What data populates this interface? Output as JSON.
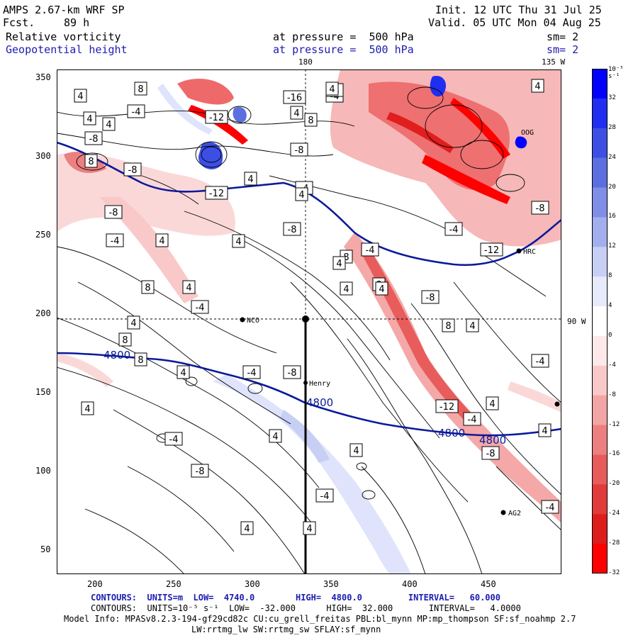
{
  "header": {
    "model": "AMPS 2.67-km WRF SP",
    "forecast_label": "Fcst.",
    "forecast_hours": "89 h",
    "init": "Init. 12 UTC Thu 31 Jul 25",
    "valid": "Valid. 05 UTC Mon 04 Aug 25",
    "field1_name": "Relative vorticity",
    "field1_level": "at pressure =  500 hPa",
    "field1_smooth": "sm= 2",
    "field2_name": "Geopotential height",
    "field2_level": "at pressure =  500 hPa",
    "field2_smooth": "sm= 2"
  },
  "map": {
    "lon_180": "180",
    "lon_135W": "135 W",
    "lon_90W": "90 W",
    "x_ticks": [
      "200",
      "250",
      "300",
      "350",
      "400",
      "450"
    ],
    "y_ticks": [
      "350",
      "300",
      "250",
      "200",
      "150",
      "100",
      "50"
    ],
    "stations": [
      {
        "name": "NCO"
      },
      {
        "name": "Henry"
      },
      {
        "name": "AG2"
      },
      {
        "name": "HRC"
      },
      {
        "name": "OOG"
      }
    ],
    "height_labels": [
      "4800",
      "4800",
      "4800",
      "4800"
    ],
    "vort_labels": [
      "4",
      "8",
      "-4",
      "-8",
      "-12",
      "-16",
      "-4",
      "4",
      "8",
      "-8",
      "4",
      "-4",
      "-8",
      "8",
      "4",
      "-4",
      "4",
      "-12",
      "-8",
      "4",
      "8",
      "-4",
      "-8",
      "4",
      "-4",
      "4",
      "-12",
      "-4",
      "-8",
      "4",
      "8",
      "-4",
      "4",
      "8",
      "4",
      "4",
      "-8",
      "8",
      "4",
      "-4",
      "4",
      "-4",
      "-8",
      "4",
      "4",
      "4",
      "8",
      "8",
      "4",
      "4",
      "-4",
      "-8",
      "4",
      "4",
      "-4",
      "4",
      "-12",
      "-4",
      "4",
      "-8",
      "4",
      "-4"
    ]
  },
  "colorbar": {
    "unit": "10⁻⁵ s⁻¹",
    "labels": [
      "32",
      "28",
      "24",
      "20",
      "16",
      "12",
      "8",
      "4",
      "0",
      "-4",
      "-8",
      "-12",
      "-16",
      "-20",
      "-24",
      "-28",
      "-32"
    ],
    "colors": [
      "#0000ff",
      "#1f2ef0",
      "#3d4fe3",
      "#5c6fe0",
      "#7f8ee6",
      "#a3aeee",
      "#c8cff5",
      "#e7eafb",
      "#ffffff",
      "#fde9e9",
      "#f9c9c9",
      "#f3a4a4",
      "#ec7f7f",
      "#e75b5b",
      "#e13a3a",
      "#dd1c1c",
      "#ff0000"
    ]
  },
  "footer": {
    "line1": "CONTOURS:  UNITS=m  LOW=  4740.0        HIGH=  4800.0         INTERVAL=   60.000",
    "line2": "CONTOURS:  UNITS=10⁻⁵ s⁻¹  LOW=  -32.000      HIGH=  32.000       INTERVAL=   4.0000",
    "line3": "Model Info: MPASv8.2.3-194-gf29cd82c CU:cu_grell_freitas PBL:bl_mynn MP:mp_thompson SF:sf_noahmp 2.7",
    "line4": "LW:rrtmg_lw SW:rrtmg_sw SFLAY:sf_mynn"
  }
}
